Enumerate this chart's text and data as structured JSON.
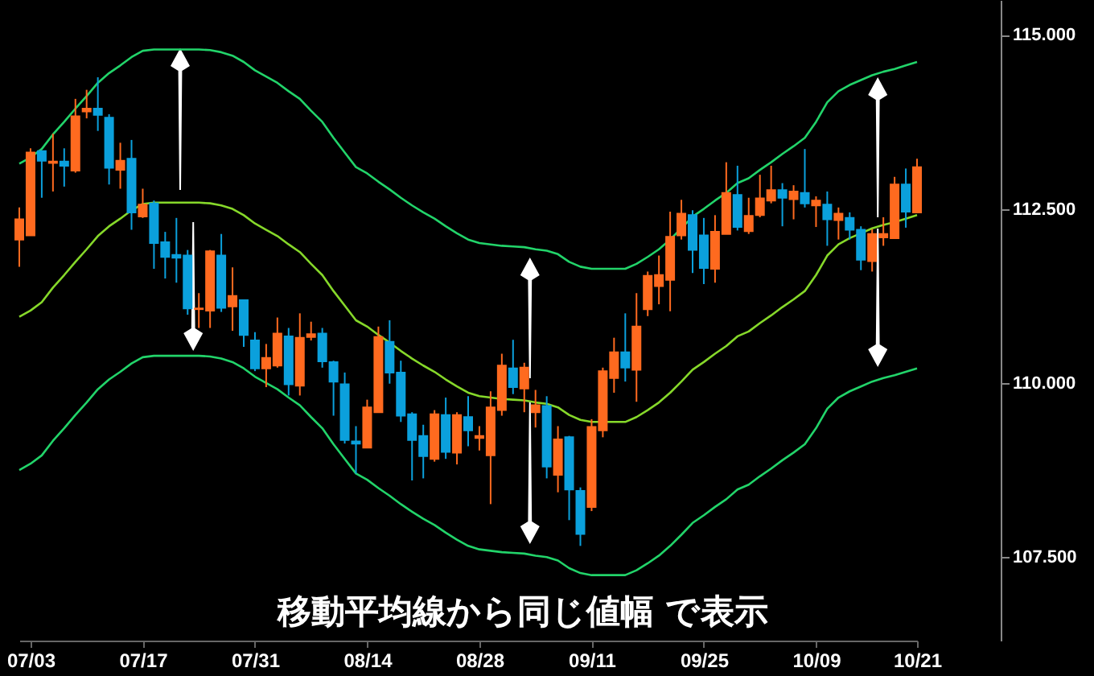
{
  "chart_data": {
    "type": "candlestick",
    "annotations": [
      "移動平均線から同じ値幅 で表示"
    ],
    "categories": [
      null,
      "07/03",
      null,
      null,
      null,
      null,
      null,
      null,
      null,
      null,
      null,
      "07/17",
      null,
      null,
      null,
      null,
      null,
      null,
      null,
      null,
      null,
      "07/31",
      null,
      null,
      null,
      null,
      null,
      null,
      null,
      null,
      null,
      "08/14",
      null,
      null,
      null,
      null,
      null,
      null,
      null,
      null,
      null,
      "08/28",
      null,
      null,
      null,
      null,
      null,
      null,
      null,
      null,
      null,
      "09/11",
      null,
      null,
      null,
      null,
      null,
      null,
      null,
      null,
      null,
      "09/25",
      null,
      null,
      null,
      null,
      null,
      null,
      null,
      null,
      null,
      "10/09",
      null,
      null,
      null,
      null,
      null,
      null,
      null,
      null,
      "10/21"
    ],
    "ohlc": [
      [
        112.06,
        112.52,
        111.67,
        112.35
      ],
      [
        112.12,
        113.37,
        112.12,
        113.31
      ],
      [
        113.33,
        113.33,
        112.66,
        113.19
      ],
      [
        113.16,
        113.58,
        112.75,
        113.18
      ],
      [
        113.18,
        113.37,
        112.82,
        113.12
      ],
      [
        113.05,
        114.08,
        113.02,
        113.83
      ],
      [
        113.9,
        114.21,
        113.8,
        113.94
      ],
      [
        113.94,
        114.39,
        113.62,
        113.85
      ],
      [
        113.81,
        113.86,
        112.85,
        113.09
      ],
      [
        113.06,
        113.45,
        112.79,
        113.19
      ],
      [
        113.22,
        113.49,
        112.2,
        112.45
      ],
      [
        112.39,
        112.79,
        112.37,
        112.56
      ],
      [
        112.58,
        112.62,
        111.64,
        112.01
      ],
      [
        112.02,
        112.17,
        111.5,
        111.81
      ],
      [
        111.84,
        112.37,
        111.44,
        111.8
      ],
      [
        111.83,
        111.91,
        110.98,
        111.07
      ],
      [
        111.06,
        111.29,
        110.79,
        111.07
      ],
      [
        111.04,
        111.91,
        110.79,
        111.89
      ],
      [
        111.83,
        112.14,
        111.02,
        111.08
      ],
      [
        111.1,
        111.66,
        110.75,
        111.25
      ],
      [
        111.19,
        111.19,
        110.52,
        110.69
      ],
      [
        110.61,
        110.73,
        110.17,
        110.21
      ],
      [
        110.21,
        110.56,
        109.94,
        110.36
      ],
      [
        110.25,
        110.94,
        110.22,
        110.71
      ],
      [
        110.67,
        110.79,
        109.82,
        109.98
      ],
      [
        109.96,
        111.0,
        109.82,
        110.65
      ],
      [
        110.66,
        110.88,
        110.61,
        110.7
      ],
      [
        110.71,
        110.79,
        110.22,
        110.31
      ],
      [
        110.3,
        110.32,
        109.53,
        110.02
      ],
      [
        109.98,
        110.15,
        109.13,
        109.18
      ],
      [
        109.16,
        109.38,
        108.7,
        109.13
      ],
      [
        109.07,
        109.76,
        109.07,
        109.65
      ],
      [
        109.58,
        110.81,
        109.58,
        110.66
      ],
      [
        110.59,
        110.9,
        109.99,
        110.15
      ],
      [
        110.15,
        110.32,
        109.44,
        109.53
      ],
      [
        109.55,
        109.58,
        108.6,
        109.18
      ],
      [
        109.24,
        109.4,
        108.63,
        108.95
      ],
      [
        108.91,
        109.61,
        108.87,
        109.55
      ],
      [
        109.54,
        109.79,
        108.91,
        109.01
      ],
      [
        109.0,
        109.58,
        108.83,
        109.54
      ],
      [
        109.51,
        109.81,
        109.09,
        109.32
      ],
      [
        109.21,
        109.38,
        109.03,
        109.24
      ],
      [
        108.96,
        109.88,
        108.26,
        109.65
      ],
      [
        109.61,
        110.42,
        109.53,
        110.25
      ],
      [
        110.21,
        110.62,
        109.84,
        109.94
      ],
      [
        109.92,
        110.29,
        109.58,
        110.22
      ],
      [
        109.58,
        109.9,
        109.36,
        109.68
      ],
      [
        109.67,
        109.81,
        108.63,
        108.8
      ],
      [
        108.68,
        109.38,
        108.43,
        109.19
      ],
      [
        109.22,
        109.24,
        108.03,
        108.47
      ],
      [
        108.45,
        108.5,
        107.66,
        107.83
      ],
      [
        108.22,
        109.48,
        108.16,
        109.37
      ],
      [
        109.32,
        110.22,
        109.22,
        110.17
      ],
      [
        110.07,
        110.65,
        109.86,
        110.44
      ],
      [
        110.44,
        111.0,
        110.02,
        110.22
      ],
      [
        110.19,
        111.29,
        109.73,
        110.81
      ],
      [
        111.06,
        111.6,
        110.96,
        111.54
      ],
      [
        111.39,
        111.83,
        111.13,
        111.55
      ],
      [
        111.48,
        112.46,
        111.03,
        112.1
      ],
      [
        112.12,
        112.63,
        112.06,
        112.43
      ],
      [
        112.41,
        112.48,
        111.58,
        111.91
      ],
      [
        112.12,
        112.37,
        111.42,
        111.65
      ],
      [
        111.64,
        112.41,
        111.44,
        112.17
      ],
      [
        112.14,
        113.17,
        112.14,
        112.73
      ],
      [
        112.7,
        113.12,
        112.19,
        112.24
      ],
      [
        112.18,
        112.66,
        112.14,
        112.4
      ],
      [
        112.41,
        112.99,
        112.38,
        112.65
      ],
      [
        112.62,
        113.12,
        112.58,
        112.77
      ],
      [
        112.77,
        112.87,
        112.25,
        112.66
      ],
      [
        112.64,
        112.84,
        112.35,
        112.75
      ],
      [
        112.73,
        113.36,
        112.52,
        112.58
      ],
      [
        112.55,
        112.68,
        112.24,
        112.62
      ],
      [
        112.56,
        112.75,
        111.97,
        112.35
      ],
      [
        112.34,
        112.52,
        112.06,
        112.43
      ],
      [
        112.37,
        112.45,
        112.06,
        112.2
      ],
      [
        112.2,
        112.25,
        111.62,
        111.77
      ],
      [
        111.75,
        112.21,
        111.6,
        112.14
      ],
      [
        112.09,
        112.38,
        111.97,
        112.14
      ],
      [
        112.08,
        112.96,
        112.08,
        112.85
      ],
      [
        112.85,
        113.08,
        112.23,
        112.46
      ],
      [
        112.45,
        113.22,
        112.45,
        113.1
      ]
    ],
    "colors": [
      "#ff6a1f",
      "#ff6a1f",
      "#0ba0dc",
      "#ff6a1f",
      "#0ba0dc",
      "#ff6a1f",
      "#ff6a1f",
      "#0ba0dc",
      "#0ba0dc",
      "#ff6a1f",
      "#0ba0dc",
      "#ff6a1f",
      "#0ba0dc",
      "#0ba0dc",
      "#0ba0dc",
      "#0ba0dc",
      "#ff6a1f",
      "#ff6a1f",
      "#0ba0dc",
      "#ff6a1f",
      "#0ba0dc",
      "#0ba0dc",
      "#ff6a1f",
      "#ff6a1f",
      "#0ba0dc",
      "#ff6a1f",
      "#ff6a1f",
      "#0ba0dc",
      "#0ba0dc",
      "#0ba0dc",
      "#0ba0dc",
      "#ff6a1f",
      "#ff6a1f",
      "#0ba0dc",
      "#0ba0dc",
      "#0ba0dc",
      "#0ba0dc",
      "#ff6a1f",
      "#0ba0dc",
      "#ff6a1f",
      "#0ba0dc",
      "#ff6a1f",
      "#ff6a1f",
      "#ff6a1f",
      "#0ba0dc",
      "#ff6a1f",
      "#ff6a1f",
      "#0ba0dc",
      "#ff6a1f",
      "#0ba0dc",
      "#0ba0dc",
      "#ff6a1f",
      "#ff6a1f",
      "#ff6a1f",
      "#0ba0dc",
      "#ff6a1f",
      "#ff6a1f",
      "#ff6a1f",
      "#ff6a1f",
      "#ff6a1f",
      "#0ba0dc",
      "#0ba0dc",
      "#ff6a1f",
      "#ff6a1f",
      "#0ba0dc",
      "#ff6a1f",
      "#ff6a1f",
      "#ff6a1f",
      "#0ba0dc",
      "#ff6a1f",
      "#0ba0dc",
      "#ff6a1f",
      "#0ba0dc",
      "#ff6a1f",
      "#0ba0dc",
      "#0ba0dc",
      "#ff6a1f",
      "#ff6a1f",
      "#ff6a1f",
      "#0ba0dc",
      "#ff6a1f"
    ],
    "series": [
      {
        "type": "line",
        "color": "#22d46a",
        "values": [
          113.15,
          113.24,
          113.36,
          113.57,
          113.75,
          113.94,
          114.12,
          114.31,
          114.45,
          114.56,
          114.68,
          114.77,
          114.79,
          114.79,
          114.79,
          114.79,
          114.79,
          114.78,
          114.75,
          114.7,
          114.61,
          114.49,
          114.4,
          114.31,
          114.19,
          114.08,
          113.91,
          113.75,
          113.52,
          113.31,
          113.1,
          113.01,
          112.89,
          112.78,
          112.66,
          112.55,
          112.45,
          112.36,
          112.25,
          112.15,
          112.06,
          112.01,
          111.99,
          111.97,
          111.96,
          111.95,
          111.92,
          111.9,
          111.85,
          111.74,
          111.67,
          111.64,
          111.64,
          111.64,
          111.64,
          111.71,
          111.81,
          111.92,
          112.06,
          112.22,
          112.39,
          112.5,
          112.62,
          112.73,
          112.87,
          112.94,
          113.06,
          113.17,
          113.29,
          113.4,
          113.52,
          113.75,
          114.03,
          114.19,
          114.28,
          114.35,
          114.42,
          114.47,
          114.51,
          114.56,
          114.61
        ]
      },
      {
        "type": "line",
        "color": "#86d82a",
        "values": [
          110.95,
          111.04,
          111.16,
          111.37,
          111.55,
          111.74,
          111.92,
          112.11,
          112.25,
          112.36,
          112.48,
          112.57,
          112.59,
          112.59,
          112.59,
          112.59,
          112.59,
          112.58,
          112.55,
          112.5,
          112.41,
          112.29,
          112.2,
          112.11,
          111.99,
          111.88,
          111.71,
          111.55,
          111.32,
          111.11,
          110.9,
          110.81,
          110.69,
          110.58,
          110.46,
          110.35,
          110.25,
          110.16,
          110.05,
          109.95,
          109.86,
          109.81,
          109.79,
          109.77,
          109.76,
          109.75,
          109.72,
          109.7,
          109.65,
          109.54,
          109.47,
          109.44,
          109.44,
          109.44,
          109.44,
          109.51,
          109.61,
          109.72,
          109.86,
          110.02,
          110.19,
          110.3,
          110.42,
          110.53,
          110.67,
          110.74,
          110.86,
          110.97,
          111.09,
          111.2,
          111.32,
          111.55,
          111.83,
          111.99,
          112.08,
          112.15,
          112.22,
          112.27,
          112.31,
          112.36,
          112.41
        ]
      },
      {
        "type": "line",
        "color": "#22d46a",
        "values": [
          108.75,
          108.84,
          108.96,
          109.17,
          109.35,
          109.54,
          109.72,
          109.91,
          110.05,
          110.16,
          110.28,
          110.37,
          110.39,
          110.39,
          110.39,
          110.39,
          110.39,
          110.38,
          110.35,
          110.3,
          110.21,
          110.09,
          110.0,
          109.91,
          109.79,
          109.68,
          109.51,
          109.35,
          109.12,
          108.91,
          108.7,
          108.61,
          108.49,
          108.38,
          108.26,
          108.15,
          108.05,
          107.96,
          107.85,
          107.75,
          107.66,
          107.61,
          107.59,
          107.57,
          107.56,
          107.55,
          107.52,
          107.5,
          107.45,
          107.34,
          107.27,
          107.24,
          107.24,
          107.24,
          107.24,
          107.31,
          107.41,
          107.52,
          107.66,
          107.82,
          107.99,
          108.1,
          108.22,
          108.33,
          108.47,
          108.54,
          108.66,
          108.77,
          108.89,
          109.0,
          109.12,
          109.35,
          109.63,
          109.79,
          109.88,
          109.95,
          110.02,
          110.07,
          110.11,
          110.16,
          110.21
        ]
      }
    ],
    "ylim": [
      106.3,
      115.5
    ],
    "yticks": [
      {
        "value": 107.5,
        "label": "107.500"
      },
      {
        "value": 110,
        "label": "110.000"
      },
      {
        "value": 112.5,
        "label": "112.500"
      },
      {
        "value": 115,
        "label": "115.000"
      }
    ]
  }
}
